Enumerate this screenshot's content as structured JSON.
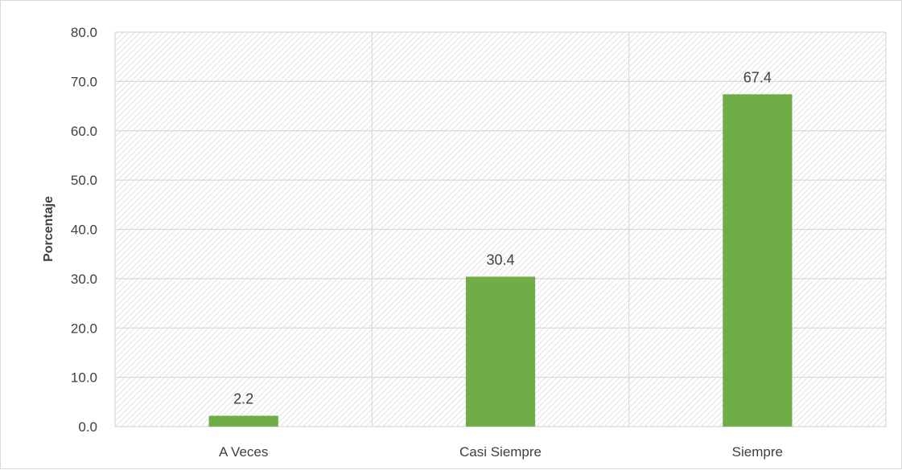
{
  "chart_data": {
    "type": "bar",
    "categories": [
      "A Veces",
      "Casi Siempre",
      "Siempre"
    ],
    "values": [
      2.2,
      30.4,
      67.4
    ],
    "data_labels": [
      "2.2",
      "30.4",
      "67.4"
    ],
    "title": "",
    "xlabel": "",
    "ylabel": "Porcentaje",
    "ylim": [
      0,
      80
    ],
    "y_ticks": [
      "0.0",
      "10.0",
      "20.0",
      "30.0",
      "40.0",
      "50.0",
      "60.0",
      "70.0",
      "80.0"
    ],
    "grid": true,
    "legend": "none",
    "colors": {
      "bar": "#70ad47",
      "grid": "#d9d9d9",
      "hatch": "#d0d0d0",
      "text": "#404040"
    }
  }
}
